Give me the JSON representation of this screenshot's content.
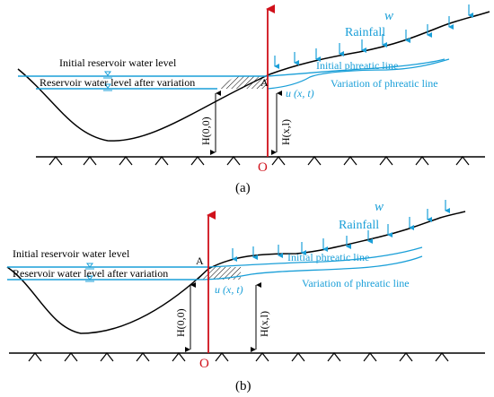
{
  "colors": {
    "water_line": "#1a9fd8",
    "axis": "#d0101a",
    "ground": "#000000"
  },
  "panel_a": {
    "caption": "(a)",
    "initial_level": "Initial reservoir water level",
    "after_level": "Reservoir water level after variation",
    "rainfall": "Rainfall",
    "w": "w",
    "initial_phreatic": "Initial phreatic line",
    "variation_phreatic": "Variation of phreatic line",
    "u_label": "u (x, t)",
    "point": "A",
    "h00": "H(0,0)",
    "hxl": "H(x,l)",
    "origin": "O"
  },
  "panel_b": {
    "caption": "(b)",
    "initial_level": "Initial reservoir water level",
    "after_level": "Reservoir water level after variation",
    "rainfall": "Rainfall",
    "w": "w",
    "initial_phreatic": "Initial phreatic line",
    "variation_phreatic": "Variation of phreatic line",
    "u_label": "u (x, t)",
    "point": "A",
    "h00": "H(0,0)",
    "hxl": "H(x,l)",
    "origin": "O"
  }
}
